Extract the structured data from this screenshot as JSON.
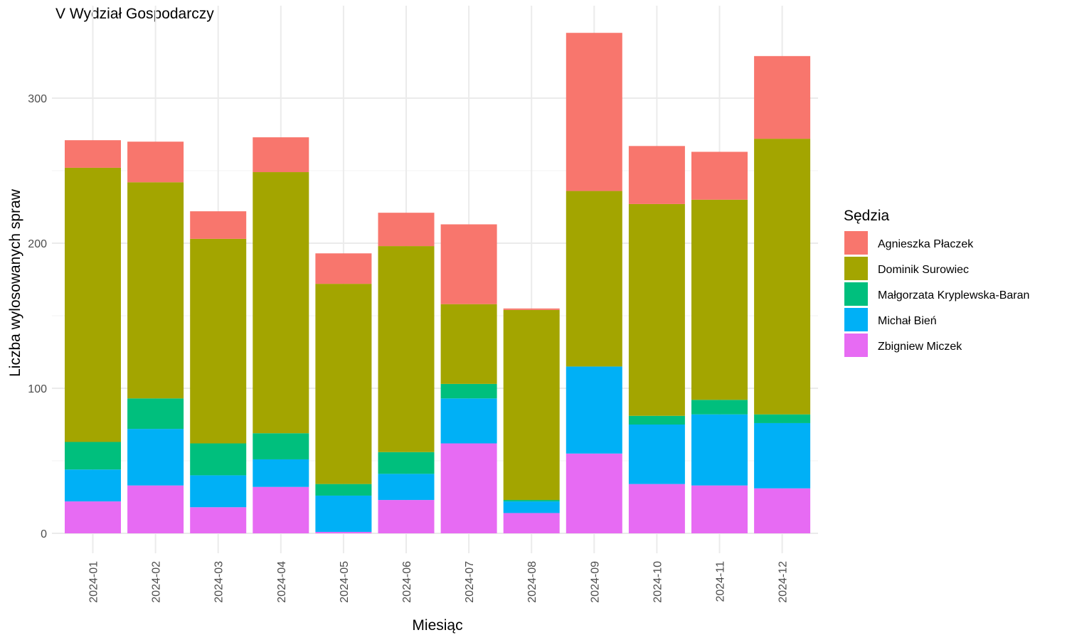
{
  "chart_data": {
    "type": "bar",
    "stacked": true,
    "title": "V Wydział Gospodarczy",
    "xlabel": "Miesiąc",
    "ylabel": "Liczba wylosowanych spraw",
    "ylim": [
      0,
      350
    ],
    "yticks": [
      0,
      100,
      200,
      300
    ],
    "grid": true,
    "legend_position": "right",
    "legend_title": "Sędzia",
    "categories": [
      "2024-01",
      "2024-02",
      "2024-03",
      "2024-04",
      "2024-05",
      "2024-06",
      "2024-07",
      "2024-08",
      "2024-09",
      "2024-10",
      "2024-11",
      "2024-12"
    ],
    "series": [
      {
        "name": "Agnieszka Płaczek",
        "color": "#F8766D",
        "values": [
          19,
          28,
          19,
          24,
          21,
          23,
          55,
          1,
          109,
          40,
          33,
          57
        ]
      },
      {
        "name": "Dominik Surowiec",
        "color": "#A3A500",
        "values": [
          189,
          149,
          141,
          180,
          138,
          142,
          55,
          131,
          121,
          146,
          138,
          190
        ]
      },
      {
        "name": "Małgorzata Kryplewska-Baran",
        "color": "#00BF7D",
        "values": [
          19,
          21,
          22,
          18,
          8,
          15,
          10,
          1,
          0,
          6,
          10,
          6
        ]
      },
      {
        "name": "Michał Bień",
        "color": "#00B0F6",
        "values": [
          22,
          39,
          22,
          19,
          25,
          18,
          31,
          8,
          60,
          41,
          49,
          45
        ]
      },
      {
        "name": "Zbigniew Miczek",
        "color": "#E76BF3",
        "values": [
          22,
          33,
          18,
          32,
          1,
          23,
          62,
          14,
          55,
          34,
          33,
          31
        ]
      }
    ]
  }
}
